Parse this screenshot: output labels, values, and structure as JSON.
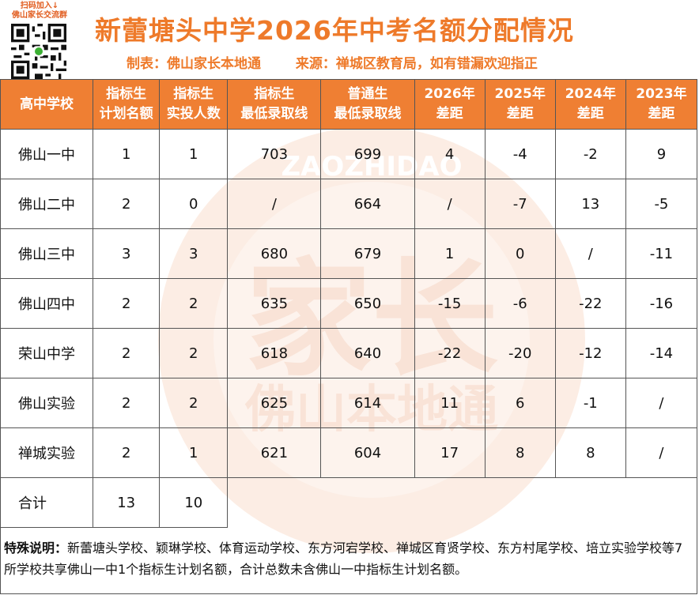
{
  "qr": {
    "caption_line1": "扫码加入↓",
    "caption_line2": "佛山家长交流群"
  },
  "title": "新蕾塘头中学2026年中考名额分配情况",
  "subtitle": {
    "maker": "制表：佛山家长本地通",
    "source": "来源：禅城区教育局，如有错漏欢迎指正"
  },
  "table": {
    "headers": [
      [
        "高中学校"
      ],
      [
        "指标生",
        "计划名额"
      ],
      [
        "指标生",
        "实投人数"
      ],
      [
        "指标生",
        "最低录取线"
      ],
      [
        "普通生",
        "最低录取线"
      ],
      [
        "2026年",
        "差距"
      ],
      [
        "2025年",
        "差距"
      ],
      [
        "2024年",
        "差距"
      ],
      [
        "2023年",
        "差距"
      ]
    ],
    "rows": [
      [
        "佛山一中",
        "1",
        "1",
        "703",
        "699",
        "4",
        "-4",
        "-2",
        "9"
      ],
      [
        "佛山二中",
        "2",
        "0",
        "/",
        "664",
        "/",
        "-7",
        "13",
        "-5"
      ],
      [
        "佛山三中",
        "3",
        "3",
        "680",
        "679",
        "1",
        "0",
        "/",
        "-11"
      ],
      [
        "佛山四中",
        "2",
        "2",
        "635",
        "650",
        "-15",
        "-6",
        "-22",
        "-16"
      ],
      [
        "荣山中学",
        "2",
        "2",
        "618",
        "640",
        "-22",
        "-20",
        "-12",
        "-14"
      ],
      [
        "佛山实验",
        "2",
        "2",
        "625",
        "614",
        "11",
        "6",
        "-1",
        "/"
      ],
      [
        "禅城实验",
        "2",
        "1",
        "621",
        "604",
        "17",
        "8",
        "8",
        "/"
      ]
    ],
    "total": [
      "合计",
      "13",
      "10"
    ]
  },
  "note": {
    "label": "特殊说明：",
    "text": "新蕾塘头学校、颖琳学校、体育运动学校、东方河宕学校、禅城区育贤学校、东方村尾学校、培立实验学校等7所学校共享佛山一中1个指标生计划名额，合计总数未含佛山一中指标生计划名额。"
  },
  "watermark": {
    "main": "家长",
    "lower": "佛山本地通",
    "ring": "ZAOZHIDAO"
  },
  "colors": {
    "accent": "#ef7f33",
    "title": "#ee7a2a"
  }
}
